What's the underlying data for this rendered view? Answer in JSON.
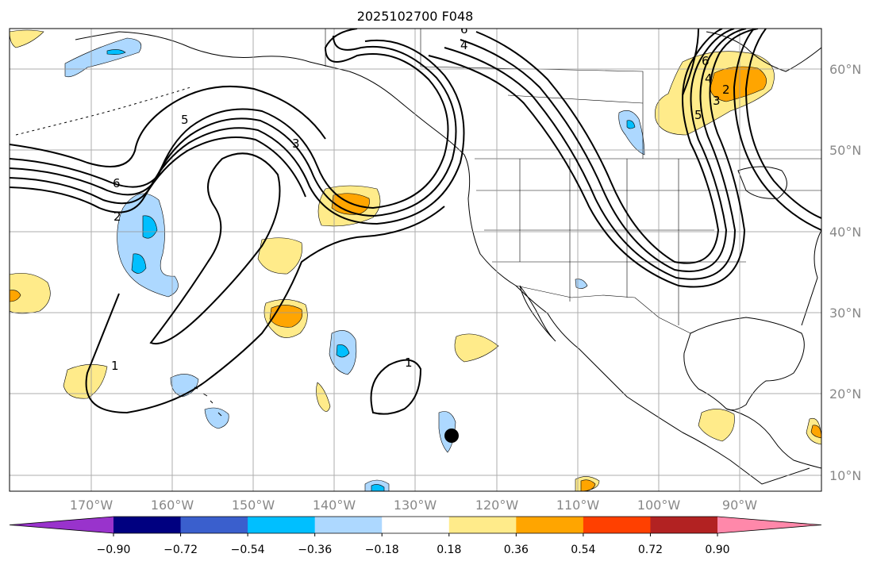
{
  "title": "2025102700 F048",
  "map": {
    "lat_labels": [
      "60°N",
      "50°N",
      "40°N",
      "30°N",
      "20°N",
      "10°N"
    ],
    "lon_labels": [
      "170°W",
      "160°W",
      "150°W",
      "140°W",
      "130°W",
      "120°W",
      "110°W",
      "100°W",
      "90°W"
    ],
    "contour_labels": [
      "5",
      "6",
      "2",
      "3",
      "1",
      "4",
      "6",
      "1",
      "4",
      "5",
      "3",
      "2",
      "6"
    ],
    "grid": true,
    "marker": "black-dot"
  },
  "colorbar": {
    "tick_labels": [
      "−0.90",
      "−0.72",
      "−0.54",
      "−0.36",
      "−0.18",
      "0.18",
      "0.36",
      "0.54",
      "0.72",
      "0.90"
    ],
    "colors": [
      "#9933cc",
      "#000080",
      "#3a5fcd",
      "#00bfff",
      "#add8ff",
      "#ffffff",
      "#ffeb8a",
      "#ffa500",
      "#ff4000",
      "#b22222",
      "#ff88aa"
    ]
  },
  "colors": {
    "light_blue": "#add8ff",
    "blue": "#00bfff",
    "light_yellow": "#ffeb8a",
    "orange": "#ffa500"
  }
}
